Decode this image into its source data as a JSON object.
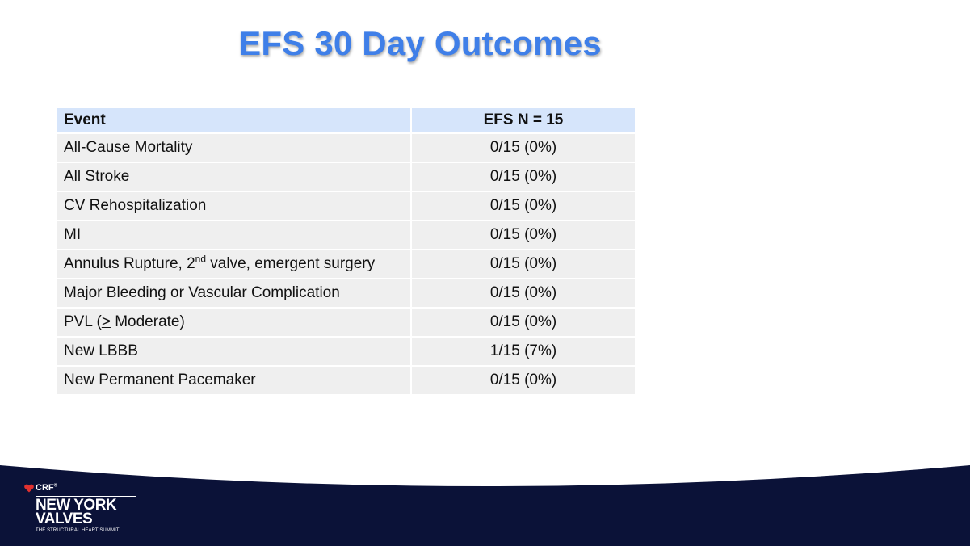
{
  "slide": {
    "title": "EFS 30 Day Outcomes"
  },
  "table": {
    "headers": {
      "event": "Event",
      "value": "EFS N = 15"
    },
    "rows": [
      {
        "event": "All-Cause Mortality",
        "value": "0/15 (0%)"
      },
      {
        "event": "All Stroke",
        "value": "0/15 (0%)"
      },
      {
        "event": "CV Rehospitalization",
        "value": "0/15 (0%)"
      },
      {
        "event": "MI",
        "value": "0/15 (0%)"
      },
      {
        "event_pre": "Annulus Rupture, 2",
        "event_sup": "nd",
        "event_post": " valve, emergent surgery",
        "value": "0/15 (0%)"
      },
      {
        "event": "Major Bleeding or Vascular Complication",
        "value": "0/15 (0%)"
      },
      {
        "event_pre": "PVL  (",
        "event_sym": ">",
        "event_post": " Moderate)",
        "value": "0/15 (0%)"
      },
      {
        "event": "New LBBB",
        "value": "1/15 (7%)"
      },
      {
        "event": "New Permanent Pacemaker",
        "value": "0/15 (0%)"
      }
    ]
  },
  "footer": {
    "crf_label": "CRF",
    "crf_mark": "®",
    "brand_line1": "NEW YORK",
    "brand_line2": "VALVES",
    "tagline": "THE STRUCTURAL HEART SUMMIT",
    "colors": {
      "navy": "#0b1238",
      "accent_red": "#e2312f",
      "title_blue": "#3f7fe8",
      "header_blue": "#d6e5fb"
    }
  }
}
